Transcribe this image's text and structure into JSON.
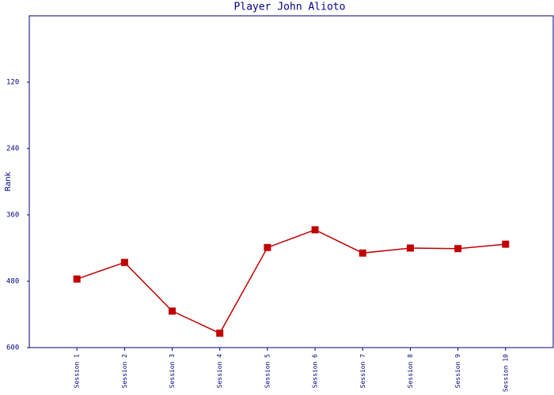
{
  "chart_data": {
    "type": "line",
    "title": "Player John Alioto",
    "y_label": "Rank",
    "categories": [
      "Session 1",
      "Session 2",
      "Session 3",
      "Session 4",
      "Session 5",
      "Session 6",
      "Session 7",
      "Session 8",
      "Session 9",
      "Session 10"
    ],
    "series": [
      {
        "name": "John Alioto",
        "color": "#c00000",
        "values": [
          476,
          446,
          534,
          574,
          419,
          387,
          429,
          420,
          421,
          413
        ]
      }
    ],
    "ylim": [
      0,
      600
    ],
    "yticks": [
      120,
      240,
      360,
      480,
      600
    ],
    "y_inverted": true,
    "grid": false,
    "legend": false
  }
}
